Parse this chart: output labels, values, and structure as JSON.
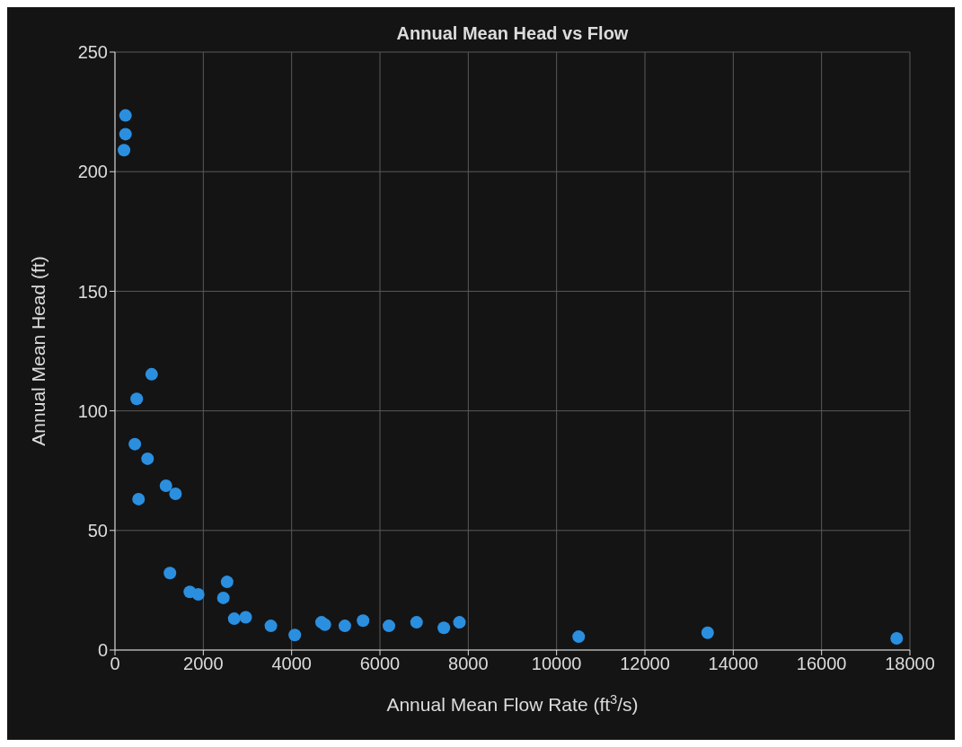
{
  "chart_data": {
    "type": "scatter",
    "title": "Annual Mean Head vs Flow",
    "xlabel": "Annual Mean Flow Rate (ft$^{3}$/s)",
    "ylabel": "Annual Mean Head (ft)",
    "x": [
      238,
      238,
      205,
      830,
      492,
      450,
      738,
      534,
      1154,
      1371,
      1245,
      1695,
      1885,
      2539,
      2454,
      2700,
      2960,
      3530,
      4072,
      4677,
      4753,
      5205,
      5618,
      6203,
      6829,
      7447,
      7800,
      10500,
      13420,
      17700
    ],
    "series": [
      {
        "color": "#2b8fe0",
        "values": [
          223.5,
          215.7,
          209,
          115.3,
          105,
          86.1,
          80,
          63.1,
          68.7,
          65.3,
          32.2,
          24.3,
          23.3,
          28.5,
          21.8,
          13.1,
          13.7,
          10.1,
          6.3,
          11.6,
          10.6,
          10.1,
          12.3,
          10.1,
          11.6,
          9.3,
          11.6,
          5.6,
          7.2,
          4.9
        ]
      }
    ],
    "xlim": [
      0,
      18000
    ],
    "xticks": [
      0,
      2000,
      4000,
      6000,
      8000,
      10000,
      12000,
      14000,
      16000,
      18000
    ],
    "ylim": [
      0,
      250
    ],
    "yticks": [
      0,
      50,
      100,
      150,
      200,
      250
    ],
    "grid": true,
    "marker": "circle"
  }
}
